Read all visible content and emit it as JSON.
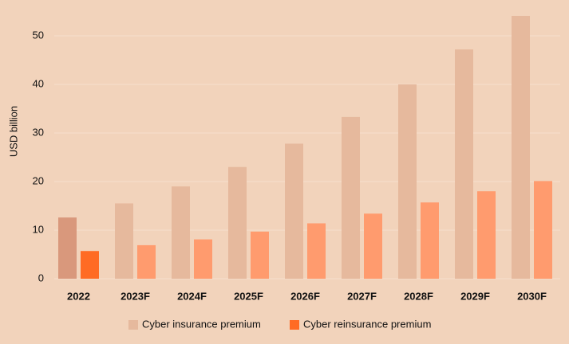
{
  "chart_data": {
    "type": "bar",
    "y_label": "USD billion",
    "categories": [
      "2022",
      "2023F",
      "2024F",
      "2025F",
      "2026F",
      "2027F",
      "2028F",
      "2029F",
      "2030F"
    ],
    "series": [
      {
        "name": "Cyber insurance premium",
        "color": "#e6b99d",
        "colors": [
          "#d9987c",
          "#e6b99d",
          "#e6b99d",
          "#e6b99d",
          "#e6b99d",
          "#e6b99d",
          "#e6b99d",
          "#e6b99d",
          "#e6b99d"
        ],
        "values": [
          12.6,
          15.5,
          19,
          23,
          27.8,
          33.3,
          40,
          47.2,
          54.1
        ]
      },
      {
        "name": "Cyber reinsurance premium",
        "color": "#ff6b24",
        "colors": [
          "#ff6b24",
          "#ff9b6e",
          "#ff9b6e",
          "#ff9b6e",
          "#ff9b6e",
          "#ff9b6e",
          "#ff9b6e",
          "#ff9b6e",
          "#ff9b6e"
        ],
        "values": [
          5.7,
          6.9,
          8.1,
          9.7,
          11.4,
          13.4,
          15.7,
          18,
          20.1
        ]
      }
    ],
    "ylim": [
      0,
      55
    ],
    "yticks": [
      0,
      10,
      20,
      30,
      40,
      50
    ],
    "grid": true,
    "legend": "bottom"
  }
}
